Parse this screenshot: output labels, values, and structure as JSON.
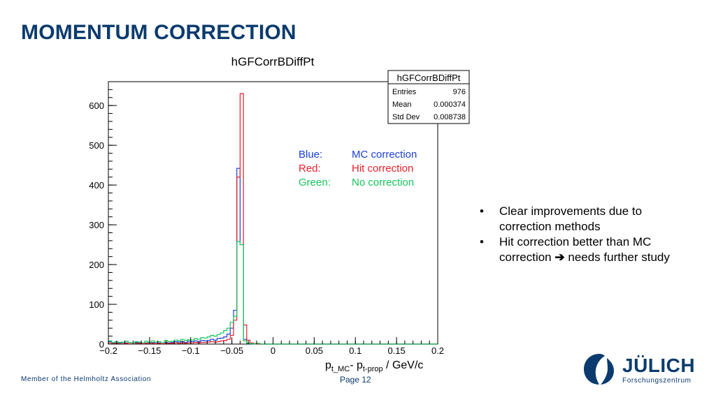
{
  "slide": {
    "title": "MOMENTUM CORRECTION",
    "bullets": [
      {
        "marker": "•",
        "text": "Clear improvements due to correction methods"
      },
      {
        "marker": "•",
        "text_before_arrow": "Hit correction better than MC correction",
        "arrow": "➔",
        "text_after_arrow": "needs further study"
      }
    ],
    "footer": {
      "association": "Member of the Helmholtz Association",
      "page": "Page 12"
    },
    "logo": {
      "name": "JÜLICH",
      "subtitle": "Forschungszentrum",
      "icon": "juelich-logo-icon"
    }
  },
  "chart_data": {
    "type": "histogram",
    "title": "hGFCorrBDiffPt",
    "xlabel_parts": [
      "p",
      "t_MC",
      "- p",
      "t-prop",
      " / GeV/c"
    ],
    "ylabel": "",
    "xlim": [
      -0.2,
      0.2
    ],
    "ylim": [
      0,
      660
    ],
    "x_ticks": [
      -0.2,
      -0.15,
      -0.1,
      -0.05,
      0,
      0.05,
      0.1,
      0.15,
      0.2
    ],
    "x_tick_labels": [
      "−0.2",
      "−0.15",
      "−0.1",
      "−0.05",
      "0",
      "0.05",
      "0.1",
      "0.15",
      "0.2"
    ],
    "y_ticks": [
      0,
      100,
      200,
      300,
      400,
      500,
      600
    ],
    "y_tick_labels": [
      "0",
      "100",
      "200",
      "300",
      "400",
      "500",
      "600"
    ],
    "grid": false,
    "stats_box": {
      "title": "hGFCorrBDiffPt",
      "rows": [
        {
          "label": "Entries",
          "value": "976"
        },
        {
          "label": "Mean",
          "value": "0.000374"
        },
        {
          "label": "Std Dev",
          "value": "0.008738"
        }
      ]
    },
    "legend": [
      {
        "label": "Blue:",
        "value": "MC correction",
        "color": "#1a3fd6"
      },
      {
        "label": "Red:",
        "value": "Hit correction",
        "color": "#e8202a"
      },
      {
        "label": "Green:",
        "value": "No correction",
        "color": "#16c45c"
      }
    ],
    "bin_width": 0.004,
    "bin_edges_start": -0.2,
    "series": [
      {
        "name": "MC correction",
        "color": "#1a3fd6",
        "values": [
          6,
          2,
          3,
          4,
          2,
          3,
          1,
          2,
          4,
          3,
          2,
          3,
          2,
          4,
          2,
          3,
          2,
          4,
          3,
          4,
          6,
          5,
          6,
          4,
          7,
          6,
          8,
          5,
          9,
          8,
          9,
          12,
          10,
          14,
          15,
          18,
          25,
          40,
          85,
          442,
          250,
          12,
          2,
          0,
          1,
          0,
          0,
          0,
          0,
          0,
          0,
          0,
          0,
          0,
          0,
          0,
          0,
          0,
          0,
          0,
          0,
          0,
          0,
          0,
          0,
          0,
          0,
          0,
          0,
          0,
          0,
          0,
          0,
          0,
          0,
          0,
          0,
          0,
          0,
          0,
          0,
          0,
          0,
          0,
          0,
          0,
          0,
          0,
          0,
          0,
          0,
          0,
          0,
          0,
          0,
          0,
          0,
          0,
          0,
          0
        ]
      },
      {
        "name": "Hit correction",
        "color": "#e8202a",
        "values": [
          3,
          1,
          2,
          2,
          1,
          2,
          1,
          1,
          2,
          2,
          1,
          2,
          1,
          2,
          1,
          2,
          1,
          2,
          2,
          2,
          3,
          2,
          3,
          2,
          3,
          3,
          4,
          3,
          4,
          4,
          5,
          6,
          5,
          6,
          8,
          9,
          12,
          22,
          60,
          420,
          630,
          48,
          10,
          3,
          1,
          0,
          0,
          0,
          0,
          0,
          0,
          0,
          0,
          0,
          0,
          0,
          0,
          0,
          0,
          0,
          0,
          0,
          0,
          0,
          0,
          0,
          0,
          0,
          0,
          0,
          0,
          0,
          0,
          0,
          0,
          0,
          0,
          0,
          0,
          0,
          0,
          0,
          0,
          0,
          0,
          0,
          0,
          0,
          0,
          0,
          0,
          0,
          0,
          0,
          0,
          0,
          0,
          0,
          0,
          0
        ]
      },
      {
        "name": "No correction",
        "color": "#16c45c",
        "values": [
          8,
          4,
          6,
          3,
          5,
          7,
          4,
          2,
          6,
          5,
          3,
          7,
          4,
          8,
          5,
          6,
          3,
          9,
          6,
          7,
          10,
          8,
          12,
          9,
          11,
          10,
          14,
          12,
          16,
          15,
          18,
          22,
          20,
          24,
          28,
          34,
          40,
          55,
          70,
          258,
          250,
          8,
          2,
          1,
          0,
          2,
          0,
          0,
          0,
          0,
          0,
          0,
          0,
          0,
          0,
          0,
          0,
          0,
          0,
          0,
          0,
          0,
          0,
          0,
          0,
          0,
          0,
          0,
          0,
          0,
          0,
          0,
          0,
          0,
          0,
          0,
          0,
          0,
          0,
          0,
          0,
          0,
          0,
          0,
          0,
          0,
          0,
          0,
          0,
          0,
          0,
          0,
          0,
          0,
          0,
          0,
          0,
          0,
          0,
          0
        ]
      }
    ]
  }
}
